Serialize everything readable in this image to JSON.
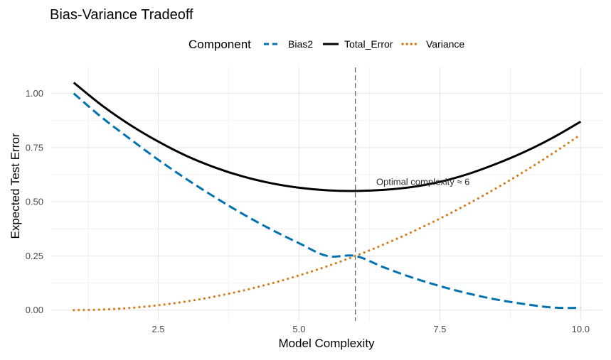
{
  "chart_data": {
    "type": "line",
    "title": "Bias-Variance Tradeoff",
    "xlabel": "Model Complexity",
    "ylabel": "Expected Test Error",
    "xlim": [
      0.6,
      10.4
    ],
    "ylim": [
      -0.05,
      1.12
    ],
    "grid": true,
    "legend": {
      "title": "Component",
      "position": "top",
      "entries": [
        {
          "label": "Bias2",
          "color": "#0072B2",
          "style": "dashed"
        },
        {
          "label": "Total_Error",
          "color": "#000000",
          "style": "solid"
        },
        {
          "label": "Variance",
          "color": "#D67E1E",
          "style": "dotted"
        }
      ]
    },
    "x_ticks": [
      2.5,
      5.0,
      7.5,
      10.0
    ],
    "x_tick_labels": [
      "2.5",
      "5.0",
      "7.5",
      "10.0"
    ],
    "y_ticks": [
      0.0,
      0.25,
      0.5,
      0.75,
      1.0
    ],
    "y_tick_labels": [
      "0.00",
      "0.25",
      "0.50",
      "0.75",
      "1.00"
    ],
    "series": [
      {
        "name": "Bias2",
        "color": "#0072B2",
        "style": "dashed",
        "x": [
          1,
          1.5,
          2,
          2.5,
          3,
          3.5,
          4,
          4.5,
          5,
          5.5,
          6,
          6.5,
          7,
          7.5,
          8,
          8.5,
          9,
          9.5,
          10
        ],
        "y": [
          1.0,
          0.889,
          0.79,
          0.694,
          0.605,
          0.522,
          0.444,
          0.373,
          0.309,
          0.25,
          0.25,
          0.198,
          0.151,
          0.111,
          0.077,
          0.049,
          0.028,
          0.012,
          0.01
        ]
      },
      {
        "name": "Total_Error",
        "color": "#000000",
        "style": "solid",
        "x": [
          1,
          1.5,
          2,
          2.5,
          3,
          3.5,
          4,
          4.5,
          5,
          5.5,
          6,
          6.5,
          7,
          7.5,
          8,
          8.5,
          9,
          9.5,
          10
        ],
        "y": [
          1.05,
          0.945,
          0.855,
          0.778,
          0.712,
          0.659,
          0.617,
          0.586,
          0.565,
          0.553,
          0.55,
          0.555,
          0.568,
          0.592,
          0.628,
          0.675,
          0.73,
          0.795,
          0.87
        ]
      },
      {
        "name": "Variance",
        "color": "#D67E1E",
        "style": "dotted",
        "x": [
          1,
          1.5,
          2,
          2.5,
          3,
          3.5,
          4,
          4.5,
          5,
          5.5,
          6,
          6.5,
          7,
          7.5,
          8,
          8.5,
          9,
          9.5,
          10
        ],
        "y": [
          0.0,
          0.0025,
          0.01,
          0.0225,
          0.04,
          0.0625,
          0.09,
          0.1225,
          0.16,
          0.2025,
          0.25,
          0.3025,
          0.36,
          0.4225,
          0.49,
          0.5625,
          0.64,
          0.7225,
          0.81
        ]
      }
    ],
    "vline": {
      "x": 6,
      "color": "#666666",
      "style": "dashed"
    },
    "annotations": [
      {
        "text": "Optimal complexity ≈ 6",
        "x": 7.2,
        "y": 0.59
      }
    ]
  }
}
